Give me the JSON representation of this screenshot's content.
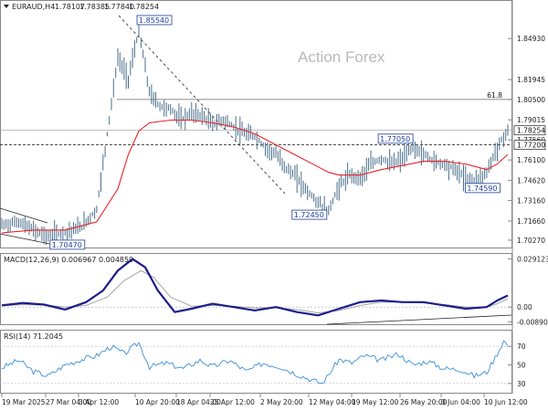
{
  "header": {
    "symbol": "EURAUD,H4",
    "ohlc": [
      "1.78107",
      "1.78385",
      "1.77840",
      "1.78254"
    ],
    "menu_icon": "triangle-down-icon"
  },
  "watermark": "Action Forex",
  "colors": {
    "price": "#4a6f8a",
    "ma": "#e8232a",
    "macd": "#1c1c8c",
    "signal": "#9a9a9a",
    "rsi": "#3d8fd6",
    "label_border": "#1f3d99",
    "grid": "#d7d7d7"
  },
  "chart_data": [
    {
      "type": "line",
      "panel": "price",
      "ylim": [
        1.698,
        1.868
      ],
      "yticks": [
        "1.84930",
        "1.81945",
        "1.80500",
        "1.79015",
        "1.77560",
        "1.76100",
        "1.74620",
        "1.73160",
        "1.71660",
        "1.70270"
      ],
      "x_ticks": [
        "19 Mar 2025",
        "27 Mar 04:00",
        "3 Apr 12:00",
        "10 Apr 20:00",
        "18 Apr 04:00",
        "25 Apr 12:00",
        "2 May 20:00",
        "12 May 04:00",
        "19 May 12:00",
        "26 May 20:00",
        "3 Jun 04:00",
        "10 Jun 12:00"
      ],
      "series": [
        {
          "values": [
            [
              0,
              1.7135
            ],
            [
              8,
              1.716
            ],
            [
              15,
              1.71
            ],
            [
              22,
              1.7052
            ],
            [
              30,
              1.7085
            ],
            [
              38,
              1.7125
            ],
            [
              45,
              1.725
            ],
            [
              50,
              1.78
            ],
            [
              55,
              1.835
            ],
            [
              60,
              1.82
            ],
            [
              65,
              1.8554
            ],
            [
              70,
              1.81
            ],
            [
              75,
              1.8
            ],
            [
              80,
              1.798
            ],
            [
              85,
              1.79
            ],
            [
              90,
              1.795
            ],
            [
              95,
              1.793
            ],
            [
              100,
              1.787
            ],
            [
              105,
              1.79
            ],
            [
              110,
              1.785
            ],
            [
              115,
              1.78
            ],
            [
              120,
              1.778
            ],
            [
              125,
              1.77
            ],
            [
              130,
              1.765
            ],
            [
              135,
              1.755
            ],
            [
              140,
              1.748
            ],
            [
              145,
              1.738
            ],
            [
              150,
              1.73
            ],
            [
              155,
              1.7245
            ],
            [
              160,
              1.742
            ],
            [
              165,
              1.75
            ],
            [
              170,
              1.748
            ],
            [
              175,
              1.758
            ],
            [
              180,
              1.762
            ],
            [
              185,
              1.758
            ],
            [
              190,
              1.762
            ],
            [
              195,
              1.7705
            ],
            [
              200,
              1.765
            ],
            [
              205,
              1.76
            ],
            [
              210,
              1.758
            ],
            [
              215,
              1.754
            ],
            [
              220,
              1.748
            ],
            [
              225,
              1.7459
            ],
            [
              230,
              1.752
            ],
            [
              235,
              1.77
            ],
            [
              240,
              1.7825
            ]
          ]
        },
        {
          "values": [
            [
              0,
              1.708
            ],
            [
              15,
              1.71
            ],
            [
              30,
              1.71
            ],
            [
              45,
              1.716
            ],
            [
              55,
              1.74
            ],
            [
              60,
              1.765
            ],
            [
              65,
              1.782
            ],
            [
              70,
              1.788
            ],
            [
              80,
              1.79
            ],
            [
              90,
              1.79
            ],
            [
              100,
              1.788
            ],
            [
              110,
              1.785
            ],
            [
              120,
              1.78
            ],
            [
              130,
              1.772
            ],
            [
              140,
              1.764
            ],
            [
              150,
              1.756
            ],
            [
              155,
              1.752
            ],
            [
              160,
              1.75
            ],
            [
              170,
              1.75
            ],
            [
              180,
              1.754
            ],
            [
              190,
              1.757
            ],
            [
              200,
              1.76
            ],
            [
              210,
              1.76
            ],
            [
              220,
              1.758
            ],
            [
              230,
              1.754
            ],
            [
              235,
              1.758
            ],
            [
              240,
              1.765
            ]
          ]
        }
      ],
      "annotations": [
        {
          "text": "1.85540",
          "x": 65,
          "y": 1.8554
        },
        {
          "text": "1.70470",
          "x": 22,
          "y": 1.7047
        },
        {
          "text": "1.72450",
          "x": 155,
          "y": 1.7245
        },
        {
          "text": "1.77050",
          "x": 195,
          "y": 1.7705
        },
        {
          "text": "1.74590",
          "x": 225,
          "y": 1.7459
        },
        {
          "text": "61.8",
          "y": 1.805
        },
        {
          "text": "1.78254",
          "y": 1.78254
        },
        {
          "text": "1.77200",
          "y": 1.772
        }
      ]
    },
    {
      "type": "line",
      "panel": "macd",
      "title": "MACD(12,26,9) 0.006967 0.004859",
      "ylim": [
        -0.0098,
        0.031
      ],
      "yticks": [
        "0.029123",
        "0.00",
        "-0.008901"
      ],
      "series": [
        {
          "values": [
            [
              0,
              0.001
            ],
            [
              10,
              0.0025
            ],
            [
              20,
              0.0015
            ],
            [
              30,
              -0.0015
            ],
            [
              40,
              0.003
            ],
            [
              48,
              0.01
            ],
            [
              55,
              0.022
            ],
            [
              62,
              0.029
            ],
            [
              68,
              0.024
            ],
            [
              74,
              0.01
            ],
            [
              82,
              -0.003
            ],
            [
              90,
              -0.001
            ],
            [
              100,
              0.002
            ],
            [
              110,
              0.0
            ],
            [
              120,
              -0.002
            ],
            [
              130,
              0.0
            ],
            [
              140,
              -0.003
            ],
            [
              150,
              -0.005
            ],
            [
              160,
              -0.001
            ],
            [
              170,
              0.003
            ],
            [
              180,
              0.004
            ],
            [
              190,
              0.003
            ],
            [
              200,
              0.003
            ],
            [
              210,
              0.001
            ],
            [
              220,
              -0.001
            ],
            [
              230,
              0.0
            ],
            [
              235,
              0.004
            ],
            [
              240,
              0.007
            ]
          ]
        },
        {
          "values": [
            [
              0,
              0.0008
            ],
            [
              10,
              0.0015
            ],
            [
              20,
              0.0012
            ],
            [
              30,
              0.0
            ],
            [
              40,
              0.001
            ],
            [
              50,
              0.006
            ],
            [
              58,
              0.016
            ],
            [
              66,
              0.022
            ],
            [
              72,
              0.018
            ],
            [
              80,
              0.006
            ],
            [
              90,
              0.0005
            ],
            [
              100,
              0.001
            ],
            [
              110,
              0.0005
            ],
            [
              120,
              -0.0005
            ],
            [
              130,
              -0.0005
            ],
            [
              140,
              -0.0015
            ],
            [
              150,
              -0.0035
            ],
            [
              160,
              -0.002
            ],
            [
              170,
              0.001
            ],
            [
              180,
              0.003
            ],
            [
              190,
              0.003
            ],
            [
              200,
              0.0025
            ],
            [
              210,
              0.0015
            ],
            [
              220,
              0.0
            ],
            [
              230,
              0.0
            ],
            [
              235,
              0.002
            ],
            [
              240,
              0.0049
            ]
          ]
        }
      ]
    },
    {
      "type": "line",
      "panel": "rsi",
      "title": "RSI(14) 71.2045",
      "ylim": [
        20,
        85
      ],
      "yticks": [
        "70",
        "50",
        "30"
      ],
      "series": [
        {
          "values": [
            [
              0,
              47
            ],
            [
              8,
              55
            ],
            [
              15,
              43
            ],
            [
              22,
              38
            ],
            [
              30,
              50
            ],
            [
              38,
              56
            ],
            [
              45,
              60
            ],
            [
              52,
              70
            ],
            [
              58,
              62
            ],
            [
              65,
              74
            ],
            [
              70,
              48
            ],
            [
              78,
              52
            ],
            [
              86,
              46
            ],
            [
              94,
              55
            ],
            [
              100,
              48
            ],
            [
              108,
              55
            ],
            [
              116,
              43
            ],
            [
              124,
              52
            ],
            [
              132,
              48
            ],
            [
              140,
              40
            ],
            [
              148,
              33
            ],
            [
              152,
              30
            ],
            [
              160,
              56
            ],
            [
              166,
              52
            ],
            [
              172,
              60
            ],
            [
              180,
              55
            ],
            [
              188,
              62
            ],
            [
              195,
              50
            ],
            [
              202,
              54
            ],
            [
              210,
              46
            ],
            [
              218,
              45
            ],
            [
              224,
              38
            ],
            [
              230,
              42
            ],
            [
              234,
              58
            ],
            [
              238,
              76
            ],
            [
              240,
              71
            ]
          ]
        }
      ]
    }
  ]
}
